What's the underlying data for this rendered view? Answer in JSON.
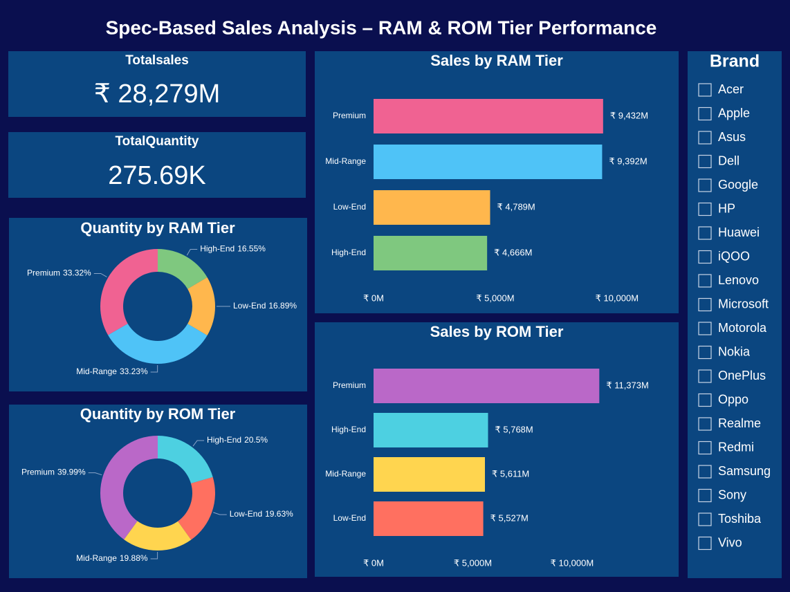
{
  "title": "Spec-Based Sales Analysis – RAM & ROM Tier Performance",
  "cards": [
    {
      "label": "Totalsales",
      "value": "₹ 28,279M"
    },
    {
      "label": "TotalQuantity",
      "value": "275.69K"
    }
  ],
  "chart_data": [
    {
      "type": "donut",
      "title": "Quantity by RAM Tier",
      "categories": [
        "High-End",
        "Low-End",
        "Mid-Range",
        "Premium"
      ],
      "values": [
        16.55,
        16.89,
        33.23,
        33.32
      ],
      "value_labels": [
        "16.55%",
        "16.89%",
        "33.23%",
        "33.32%"
      ],
      "colors": [
        "#7fc87f",
        "#ffb74d",
        "#4fc3f7",
        "#f06292"
      ]
    },
    {
      "type": "donut",
      "title": "Quantity by ROM Tier",
      "categories": [
        "High-End",
        "Low-End",
        "Mid-Range",
        "Premium"
      ],
      "values": [
        20.5,
        19.63,
        19.88,
        39.99
      ],
      "value_labels": [
        "20.5%",
        "19.63%",
        "19.88%",
        "39.99%"
      ],
      "colors": [
        "#4dd0e1",
        "#ff7060",
        "#ffd54f",
        "#ba68c8"
      ]
    },
    {
      "type": "bar",
      "orientation": "horizontal",
      "title": "Sales by RAM Tier",
      "categories": [
        "Premium",
        "Mid-Range",
        "Low-End",
        "High-End"
      ],
      "values": [
        9432,
        9392,
        4789,
        4666
      ],
      "value_labels": [
        "₹ 9,432M",
        "₹ 9,392M",
        "₹ 4,789M",
        "₹ 4,666M"
      ],
      "colors": [
        "#f06292",
        "#4fc3f7",
        "#ffb74d",
        "#7fc87f"
      ],
      "xlim": [
        0,
        11000
      ],
      "xticks": [
        {
          "value": 0,
          "label": "₹ 0M"
        },
        {
          "value": 5000,
          "label": "₹ 5,000M"
        },
        {
          "value": 10000,
          "label": "₹ 10,000M"
        }
      ]
    },
    {
      "type": "bar",
      "orientation": "horizontal",
      "title": "Sales by ROM Tier",
      "categories": [
        "Premium",
        "High-End",
        "Mid-Range",
        "Low-End"
      ],
      "values": [
        11373,
        5768,
        5611,
        5527
      ],
      "value_labels": [
        "₹ 11,373M",
        "₹ 5,768M",
        "₹ 5,611M",
        "₹ 5,527M"
      ],
      "colors": [
        "#ba68c8",
        "#4dd0e1",
        "#ffd54f",
        "#ff7060"
      ],
      "xlim": [
        0,
        13000
      ],
      "xticks": [
        {
          "value": 0,
          "label": "₹ 0M"
        },
        {
          "value": 5000,
          "label": "₹ 5,000M"
        },
        {
          "value": 10000,
          "label": "₹ 10,000M"
        }
      ]
    }
  ],
  "slicer": {
    "title": "Brand",
    "items": [
      "Acer",
      "Apple",
      "Asus",
      "Dell",
      "Google",
      "HP",
      "Huawei",
      "iQOO",
      "Lenovo",
      "Microsoft",
      "Motorola",
      "Nokia",
      "OnePlus",
      "Oppo",
      "Realme",
      "Redmi",
      "Samsung",
      "Sony",
      "Toshiba",
      "Vivo"
    ]
  }
}
